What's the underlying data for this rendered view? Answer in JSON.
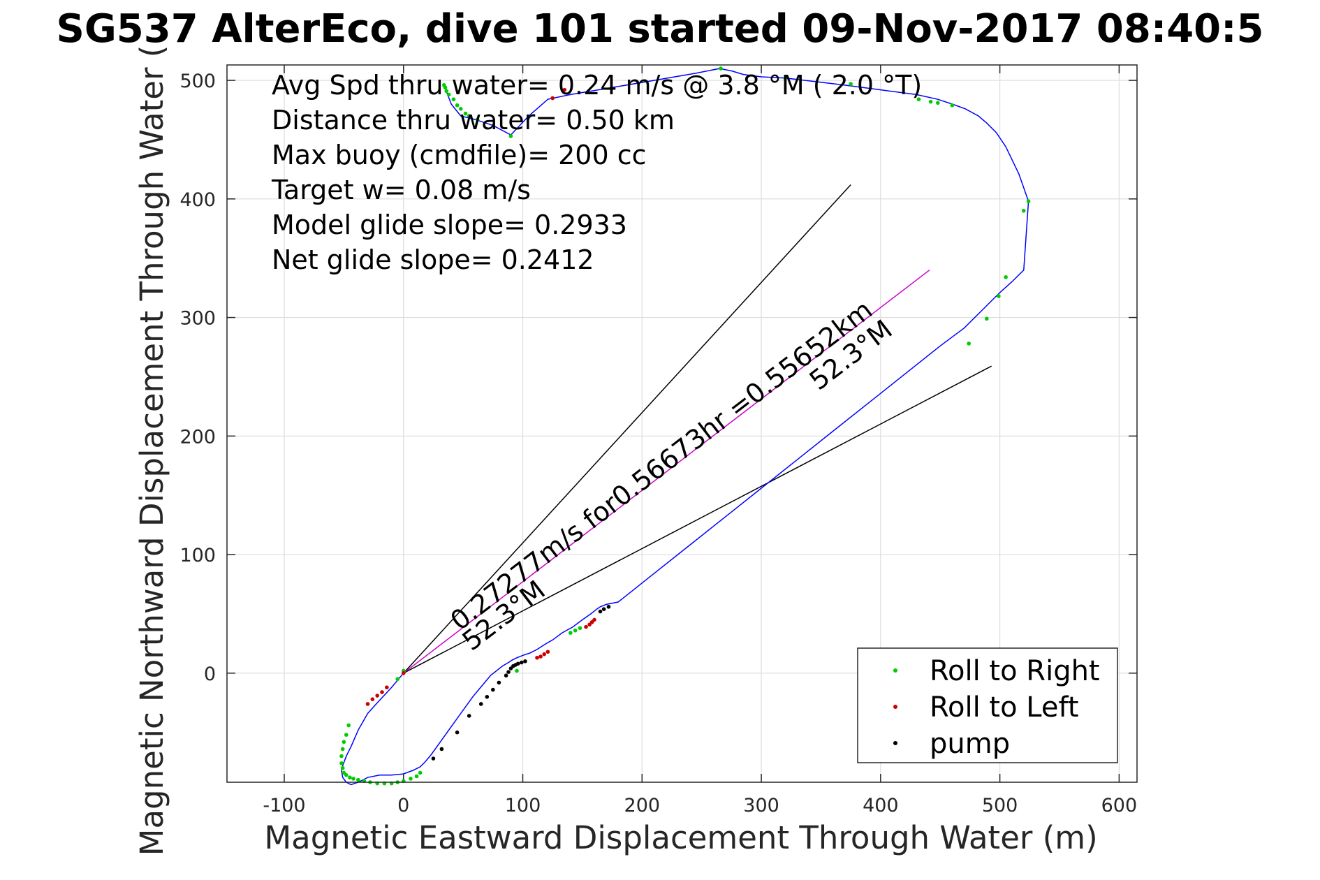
{
  "chart_data": {
    "type": "scatter",
    "title": "SG537 AlterEco, dive 101 started 09-Nov-2017 08:40:5",
    "xlabel": "Magnetic Eastward Displacement Through Water (m)",
    "ylabel": "Magnetic Northward Displacement Through Water (",
    "xlim": [
      -148,
      615
    ],
    "ylim": [
      -92,
      513
    ],
    "xticks": [
      -100,
      0,
      100,
      200,
      300,
      400,
      500,
      600
    ],
    "yticks": [
      0,
      100,
      200,
      300,
      400,
      500
    ],
    "xtick_labels": [
      "-100",
      "0",
      "100",
      "200",
      "300",
      "400",
      "500",
      "600"
    ],
    "ytick_labels": [
      "0",
      "100",
      "200",
      "300",
      "400",
      "500"
    ],
    "grid": true,
    "legend_position": "bottom-right",
    "annotation_lines": [
      "Avg Spd thru water=  0.24 m/s @   3.8 °M (  2.0 °T)",
      "Distance thru water=  0.50 km",
      "Max buoy (cmdfile)= 200 cc",
      "Target w= 0.08 m/s",
      "Model glide slope= 0.2933",
      "Net glide slope= 0.2412"
    ],
    "heading_line_label": "0.27277m/s for0.56673hr =0.55652km",
    "heading_end_label": "52.3°M",
    "heading_start_label": "52.3°M",
    "track": {
      "name": "track",
      "color": "#0000ff",
      "x": [
        0,
        -10,
        -22,
        -30,
        -38,
        -44,
        -48,
        -51,
        -52,
        -51,
        -48,
        -44,
        -38,
        -30,
        -20,
        -10,
        0,
        8,
        14,
        18,
        23,
        28,
        33,
        38,
        43,
        48,
        53,
        58,
        63,
        68,
        73,
        78,
        83,
        88,
        91,
        95,
        100,
        106,
        112,
        118,
        125,
        133,
        142,
        150,
        157,
        162,
        165,
        170,
        180,
        210,
        240,
        270,
        300,
        330,
        360,
        390,
        420,
        450,
        470,
        485,
        500,
        510,
        520,
        524,
        516,
        505,
        497,
        489,
        482,
        471,
        460,
        448,
        430,
        400,
        370,
        345,
        320,
        300,
        285,
        275,
        265,
        245,
        210,
        175,
        140,
        121,
        105,
        90,
        75,
        60,
        48,
        44,
        40,
        37,
        34
      ],
      "y": [
        0,
        -12,
        -25,
        -34,
        -48,
        -62,
        -70,
        -78,
        -82,
        -88,
        -92,
        -94,
        -92,
        -88,
        -86,
        -86,
        -85,
        -82,
        -79,
        -75,
        -69,
        -62,
        -55,
        -48,
        -41,
        -34,
        -27,
        -20,
        -14,
        -8,
        -2,
        2,
        6,
        9,
        11,
        13,
        15,
        17,
        20,
        24,
        28,
        34,
        39,
        45,
        50,
        54,
        56,
        58,
        60,
        84,
        108,
        132,
        156,
        180,
        204,
        228,
        252,
        276,
        291,
        306,
        321,
        330,
        340,
        398,
        421,
        444,
        456,
        464,
        470,
        476,
        480,
        484,
        488,
        492,
        496,
        499,
        502,
        503,
        505,
        508,
        510,
        506,
        500,
        494,
        488,
        484,
        470,
        454,
        462,
        467,
        470,
        475,
        480,
        488,
        496
      ]
    },
    "heading_line": {
      "color": "#cc00cc",
      "x": [
        0,
        441
      ],
      "y": [
        0,
        340
      ]
    },
    "cone_lines": [
      {
        "color": "#000000",
        "x": [
          0,
          375
        ],
        "y": [
          0,
          412
        ]
      },
      {
        "color": "#000000",
        "x": [
          0,
          493
        ],
        "y": [
          0,
          259
        ]
      }
    ],
    "series": [
      {
        "name": "Roll to Right",
        "color": "#00cc00",
        "x": [
          -46,
          -48,
          -50,
          -51,
          -52,
          -52,
          -51,
          -50,
          -48,
          -45,
          -42,
          -38,
          -33,
          -28,
          -22,
          -16,
          -10,
          -5,
          0,
          6,
          11,
          14,
          -5,
          0,
          140,
          144,
          148,
          95,
          266,
          320,
          375,
          474,
          489,
          499,
          505,
          520,
          524,
          34,
          35,
          36,
          38,
          42,
          45,
          48,
          52,
          55,
          62,
          90,
          432,
          442,
          448,
          460
        ],
        "y": [
          -44,
          -52,
          -58,
          -64,
          -70,
          -76,
          -80,
          -84,
          -86,
          -88,
          -89,
          -90,
          -91,
          -92,
          -93,
          -93,
          -93,
          -92,
          -91,
          -89,
          -87,
          -84,
          -5,
          2,
          34,
          36,
          38,
          2,
          510,
          502,
          497,
          278,
          299,
          318,
          334,
          390,
          398,
          496,
          494,
          491,
          488,
          484,
          479,
          476,
          472,
          470,
          467,
          453,
          484,
          482,
          481,
          479
        ]
      },
      {
        "name": "Roll to Left",
        "color": "#cc0000",
        "x": [
          -30,
          -26,
          -22,
          -18,
          -14,
          0,
          112,
          115,
          118,
          121,
          153,
          156,
          158,
          160,
          125,
          135
        ],
        "y": [
          -26,
          -22,
          -19,
          -16,
          -12,
          0,
          13,
          14,
          16,
          18,
          39,
          41,
          43,
          45,
          485,
          492
        ]
      },
      {
        "name": "pump",
        "color": "#000000",
        "x": [
          25,
          32,
          45,
          55,
          65,
          70,
          75,
          80,
          86,
          88,
          90,
          92,
          94,
          96,
          99,
          102,
          165,
          168,
          172
        ],
        "y": [
          -72,
          -64,
          -50,
          -36,
          -26,
          -20,
          -14,
          -8,
          -2,
          1,
          4,
          6,
          7,
          8,
          9,
          10,
          52,
          54,
          56
        ]
      }
    ]
  }
}
